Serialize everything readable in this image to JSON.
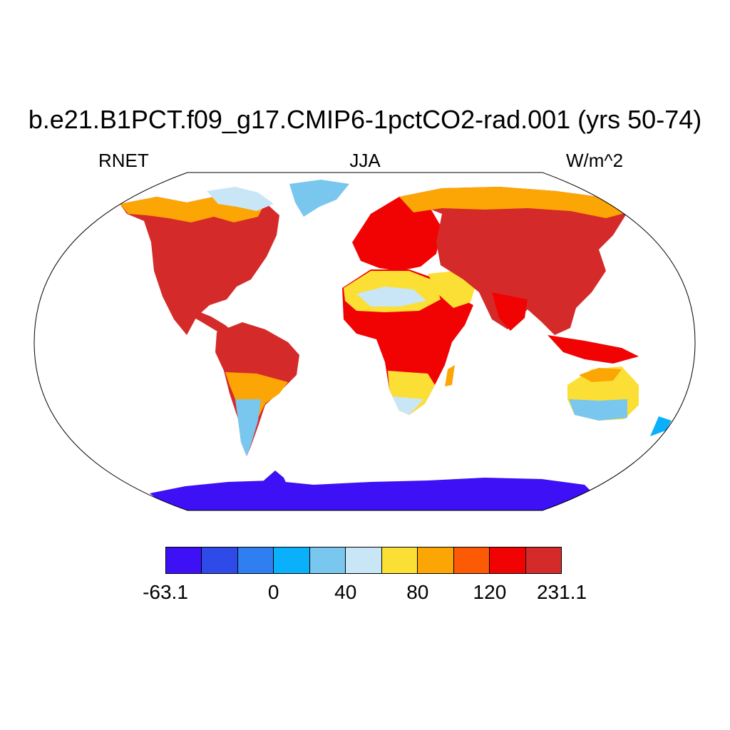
{
  "title": "b.e21.B1PCT.f09_g17.CMIP6-1pctCO2-rad.001 (yrs 50-74)",
  "subtitles": {
    "left": "RNET",
    "center": "JJA",
    "right": "W/m^2"
  },
  "colorbar": {
    "colors": [
      "#3d10f5",
      "#2e4ae8",
      "#2f7ff0",
      "#0bb0fb",
      "#79c6ef",
      "#c9e6f6",
      "#fcdf34",
      "#fba604",
      "#fd5a05",
      "#f00302",
      "#d52a2a"
    ],
    "labels": [
      {
        "text": "-63.1",
        "boundary": 0
      },
      {
        "text": "0",
        "boundary": 3
      },
      {
        "text": "40",
        "boundary": 5
      },
      {
        "text": "80",
        "boundary": 7
      },
      {
        "text": "120",
        "boundary": 9
      },
      {
        "text": "231.1",
        "boundary": 11
      }
    ]
  }
}
